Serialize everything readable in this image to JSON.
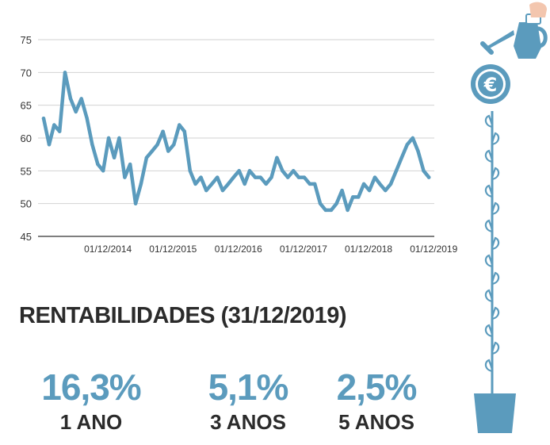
{
  "chart_data": {
    "type": "line",
    "title": "",
    "xlabel": "",
    "ylabel": "",
    "ylim": [
      45,
      76
    ],
    "yticks": [
      45,
      50,
      55,
      60,
      65,
      70,
      75
    ],
    "x_tick_labels": [
      "01/12/2014",
      "01/12/2015",
      "01/12/2016",
      "01/12/2017",
      "01/12/2018",
      "01/12/2019"
    ],
    "grid": true,
    "line_color": "#5b9bbd",
    "series": [
      {
        "x": [
          "2014-01-01",
          "2014-02-01",
          "2014-03-01",
          "2014-04-01",
          "2014-05-01",
          "2014-06-01",
          "2014-07-01",
          "2014-08-01",
          "2014-09-01",
          "2014-10-01",
          "2014-11-01",
          "2014-12-01",
          "2015-01-01",
          "2015-02-01",
          "2015-03-01",
          "2015-04-01",
          "2015-05-01",
          "2015-06-01",
          "2015-07-01",
          "2015-08-01",
          "2015-09-01",
          "2015-10-01",
          "2015-11-01",
          "2015-12-01",
          "2016-01-01",
          "2016-02-01",
          "2016-03-01",
          "2016-04-01",
          "2016-05-01",
          "2016-06-01",
          "2016-07-01",
          "2016-08-01",
          "2016-09-01",
          "2016-10-01",
          "2016-11-01",
          "2016-12-01",
          "2017-01-01",
          "2017-02-01",
          "2017-03-01",
          "2017-04-01",
          "2017-05-01",
          "2017-06-01",
          "2017-07-01",
          "2017-08-01",
          "2017-09-01",
          "2017-10-01",
          "2017-11-01",
          "2017-12-01",
          "2018-01-01",
          "2018-02-01",
          "2018-03-01",
          "2018-04-01",
          "2018-05-01",
          "2018-06-01",
          "2018-07-01",
          "2018-08-01",
          "2018-09-01",
          "2018-10-01",
          "2018-11-01",
          "2018-12-01",
          "2019-01-01",
          "2019-02-01",
          "2019-03-01",
          "2019-04-01",
          "2019-05-01",
          "2019-06-01",
          "2019-07-01",
          "2019-08-01",
          "2019-09-01",
          "2019-10-01",
          "2019-11-01",
          "2019-12-01"
        ],
        "values": [
          63,
          59,
          62,
          61,
          70,
          66,
          64,
          66,
          63,
          59,
          56,
          55,
          60,
          57,
          60,
          54,
          56,
          50,
          53,
          57,
          58,
          59,
          61,
          58,
          59,
          62,
          61,
          55,
          53,
          54,
          52,
          53,
          54,
          52,
          53,
          54,
          55,
          53,
          55,
          54,
          54,
          53,
          54,
          57,
          55,
          54,
          55,
          54,
          54,
          53,
          53,
          50,
          49,
          49,
          50,
          52,
          49,
          51,
          51,
          53,
          52,
          54,
          53,
          52,
          53,
          55,
          57,
          59,
          60,
          58,
          55,
          54
        ]
      }
    ]
  },
  "rentabilidades": {
    "title": "RENTABILIDADES (31/12/2019)",
    "items": [
      {
        "value": "16,3%",
        "label": "1 ANO"
      },
      {
        "value": "5,1%",
        "label": "3 ANOS"
      },
      {
        "value": "2,5%",
        "label": "5 ANOS"
      }
    ]
  },
  "illustration": {
    "coin_symbol": "€",
    "icon_names": [
      "watering-can-icon",
      "euro-coin-icon",
      "plant-stem-icon",
      "flower-pot-icon"
    ],
    "colors": {
      "main": "#5b9bbd",
      "skin": "#f3c6ae",
      "cuff": "#ffffff"
    }
  }
}
